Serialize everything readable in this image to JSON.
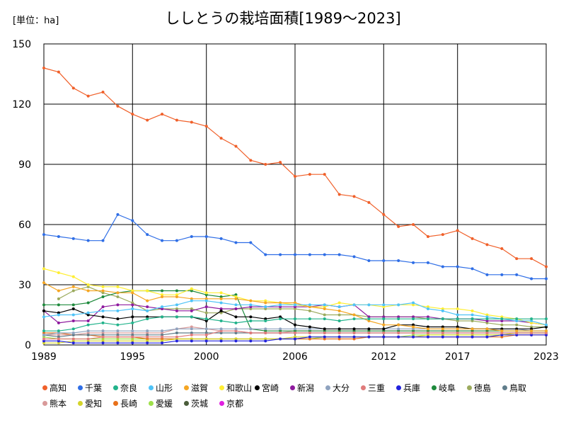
{
  "header": {
    "unit": "[単位：ha]",
    "title": "ししとうの栽培面積[1989～2023]"
  },
  "chart_data": {
    "type": "line",
    "title": "ししとうの栽培面積[1989～2023]",
    "unit": "[単位：ha]",
    "x": [
      1989,
      1990,
      1991,
      1992,
      1993,
      1994,
      1995,
      1996,
      1997,
      1998,
      1999,
      2000,
      2001,
      2002,
      2003,
      2004,
      2005,
      2006,
      2007,
      2008,
      2009,
      2010,
      2011,
      2012,
      2013,
      2014,
      2015,
      2016,
      2017,
      2018,
      2019,
      2020,
      2021,
      2022,
      2023
    ],
    "x_ticks": [
      1989,
      1995,
      2000,
      2006,
      2012,
      2017,
      2023
    ],
    "y_ticks": [
      0,
      30,
      60,
      90,
      120,
      150
    ],
    "ylim": [
      0,
      150
    ],
    "xlim": [
      1989,
      2023
    ],
    "grid": true,
    "legend_position": "bottom",
    "series": [
      {
        "name": "高知",
        "color": "#f0602a",
        "values": [
          138,
          136,
          128,
          124,
          126,
          119,
          115,
          112,
          115,
          112,
          111,
          109,
          103,
          99,
          92,
          90,
          91,
          84,
          85,
          85,
          75,
          74,
          71,
          65,
          59,
          60,
          54,
          55,
          57,
          53,
          50,
          48,
          43,
          43,
          39
        ]
      },
      {
        "name": "千葉",
        "color": "#2f6ee6",
        "values": [
          55,
          54,
          53,
          52,
          52,
          65,
          62,
          55,
          52,
          52,
          54,
          54,
          53,
          51,
          51,
          45,
          45,
          45,
          45,
          45,
          45,
          44,
          42,
          42,
          42,
          41,
          41,
          39,
          39,
          38,
          35,
          35,
          35,
          33,
          33
        ]
      },
      {
        "name": "奈良",
        "color": "#22b38b",
        "values": [
          7,
          7,
          8,
          10,
          11,
          10,
          11,
          13,
          14,
          14,
          14,
          13,
          12,
          11,
          12,
          12,
          13,
          13,
          13,
          13,
          12,
          13,
          13,
          13,
          13,
          13,
          13,
          13,
          13,
          13,
          13,
          13,
          13,
          13,
          13
        ]
      },
      {
        "name": "山形",
        "color": "#4fc3f7",
        "values": [
          14,
          15,
          15,
          16,
          17,
          17,
          18,
          17,
          19,
          20,
          22,
          22,
          21,
          20,
          20,
          19,
          20,
          20,
          20,
          20,
          19,
          20,
          20,
          20,
          20,
          21,
          18,
          17,
          15,
          15,
          14,
          13,
          12,
          12,
          10
        ]
      },
      {
        "name": "滋賀",
        "color": "#f5a623",
        "values": [
          31,
          27,
          29,
          27,
          27,
          26,
          26,
          22,
          24,
          24,
          23,
          23,
          23,
          23,
          22,
          21,
          21,
          21,
          19,
          18,
          17,
          15,
          12,
          10,
          10,
          9,
          8,
          8,
          8,
          8,
          8,
          7,
          7,
          7,
          7
        ]
      },
      {
        "name": "和歌山",
        "color": "#ffee33",
        "values": [
          38,
          36,
          34,
          30,
          29,
          29,
          27,
          27,
          25,
          25,
          28,
          26,
          26,
          24,
          22,
          22,
          21,
          20,
          19,
          19,
          21,
          20,
          20,
          19,
          20,
          20,
          19,
          18,
          18,
          17,
          15,
          14,
          13,
          11,
          10
        ]
      },
      {
        "name": "宮崎",
        "color": "#000000",
        "values": [
          17,
          16,
          18,
          15,
          14,
          13,
          14,
          14,
          14,
          14,
          14,
          12,
          17,
          14,
          14,
          13,
          14,
          10,
          9,
          8,
          8,
          8,
          8,
          8,
          10,
          10,
          9,
          9,
          9,
          8,
          8,
          8,
          8,
          8,
          9
        ]
      },
      {
        "name": "新潟",
        "color": "#8e1a9e",
        "values": [
          17,
          11,
          12,
          12,
          19,
          20,
          20,
          19,
          18,
          17,
          17,
          19,
          18,
          18,
          19,
          19,
          19,
          19,
          19,
          20,
          19,
          20,
          14,
          14,
          14,
          14,
          14,
          13,
          13,
          13,
          12,
          12,
          12,
          11,
          10
        ]
      },
      {
        "name": "大分",
        "color": "#8fa3bf",
        "values": [
          5,
          6,
          6,
          7,
          7,
          7,
          7,
          7,
          7,
          8,
          8,
          8,
          8,
          8,
          8,
          8,
          8,
          8,
          8,
          8,
          8,
          8,
          8,
          8,
          8,
          8,
          8,
          8,
          8,
          8,
          8,
          8,
          8,
          7,
          7
        ]
      },
      {
        "name": "三重",
        "color": "#e07b7b",
        "values": [
          3,
          3,
          3,
          3,
          4,
          4,
          4,
          4,
          4,
          4,
          5,
          5,
          7,
          7,
          6,
          6,
          6,
          6,
          6,
          6,
          6,
          6,
          6,
          6,
          6,
          6,
          6,
          6,
          6,
          6,
          6,
          6,
          6,
          6,
          6
        ]
      },
      {
        "name": "兵庫",
        "color": "#2222dd",
        "values": [
          2,
          2,
          1,
          1,
          1,
          1,
          1,
          1,
          1,
          2,
          2,
          2,
          2,
          2,
          2,
          2,
          3,
          3,
          4,
          4,
          4,
          4,
          4,
          4,
          4,
          4,
          4,
          4,
          4,
          4,
          4,
          5,
          5,
          5,
          5
        ]
      },
      {
        "name": "岐阜",
        "color": "#1e8a3c",
        "values": [
          20,
          20,
          20,
          21,
          24,
          26,
          27,
          27,
          27,
          27,
          27,
          25,
          24,
          25,
          8,
          7,
          7,
          7,
          7,
          7,
          7,
          7,
          7,
          7,
          7,
          7,
          7,
          7,
          7,
          7,
          7,
          7,
          7,
          7,
          7
        ]
      },
      {
        "name": "徳島",
        "color": "#9cab5e",
        "values": [
          null,
          23,
          27,
          29,
          26,
          24,
          21,
          17,
          18,
          18,
          18,
          16,
          16,
          18,
          18,
          18,
          18,
          18,
          17,
          15,
          15,
          15,
          14,
          14,
          14,
          14,
          13,
          13,
          12,
          12,
          11,
          10,
          10,
          9,
          9
        ]
      },
      {
        "name": "鳥取",
        "color": "#607d8b",
        "values": [
          5,
          4,
          5,
          5,
          5,
          5,
          5,
          5,
          5,
          6,
          6,
          6,
          6,
          6,
          6,
          6,
          6,
          6,
          6,
          6,
          6,
          6,
          6,
          6,
          6,
          6,
          6,
          6,
          6,
          6,
          6,
          6,
          6,
          6,
          6
        ]
      },
      {
        "name": "熊本",
        "color": "#d99a9a",
        "values": [
          5,
          5,
          5,
          6,
          6,
          6,
          6,
          6,
          6,
          8,
          9,
          8,
          7,
          7,
          6,
          6,
          6,
          7,
          7,
          7,
          7,
          7,
          7,
          7,
          7,
          7,
          7,
          7,
          7,
          7,
          7,
          7,
          7,
          7,
          7
        ]
      },
      {
        "name": "愛知",
        "color": "#d4d42a",
        "values": [
          1,
          1,
          2,
          2,
          2,
          2,
          2,
          2,
          2,
          3,
          3,
          3,
          3,
          3,
          3,
          3,
          3,
          4,
          4,
          4,
          4,
          4,
          4,
          4,
          4,
          4,
          5,
          5,
          5,
          5,
          5,
          5,
          6,
          6,
          6
        ]
      },
      {
        "name": "長崎",
        "color": "#e8701a",
        "values": [
          6,
          6,
          5,
          5,
          4,
          4,
          4,
          3,
          3,
          3,
          3,
          3,
          3,
          3,
          3,
          3,
          3,
          3,
          3,
          3,
          3,
          3,
          4,
          4,
          4,
          4,
          4,
          4,
          4,
          4,
          4,
          4,
          5,
          5,
          5
        ]
      },
      {
        "name": "愛媛",
        "color": "#9ee04a",
        "values": [
          4,
          3,
          3,
          3,
          3,
          3,
          3,
          3,
          3,
          3,
          3,
          3,
          3,
          3,
          3,
          3,
          3,
          3,
          3,
          4,
          4,
          4,
          4,
          4,
          4,
          5,
          5,
          5,
          5,
          5,
          5,
          5,
          6,
          6,
          6
        ]
      },
      {
        "name": "茨城",
        "color": "#4a5d3a",
        "values": [
          null,
          null,
          null,
          null,
          null,
          null,
          null,
          null,
          null,
          null,
          null,
          null,
          null,
          null,
          null,
          null,
          null,
          null,
          null,
          null,
          null,
          null,
          null,
          null,
          null,
          null,
          null,
          null,
          null,
          null,
          null,
          null,
          null,
          null,
          null
        ]
      },
      {
        "name": "京都",
        "color": "#e020e0",
        "values": [
          null,
          null,
          null,
          null,
          null,
          null,
          null,
          null,
          null,
          null,
          null,
          null,
          null,
          null,
          null,
          null,
          null,
          null,
          null,
          null,
          null,
          null,
          null,
          null,
          null,
          null,
          null,
          null,
          null,
          null,
          null,
          null,
          null,
          null,
          null
        ]
      }
    ]
  }
}
